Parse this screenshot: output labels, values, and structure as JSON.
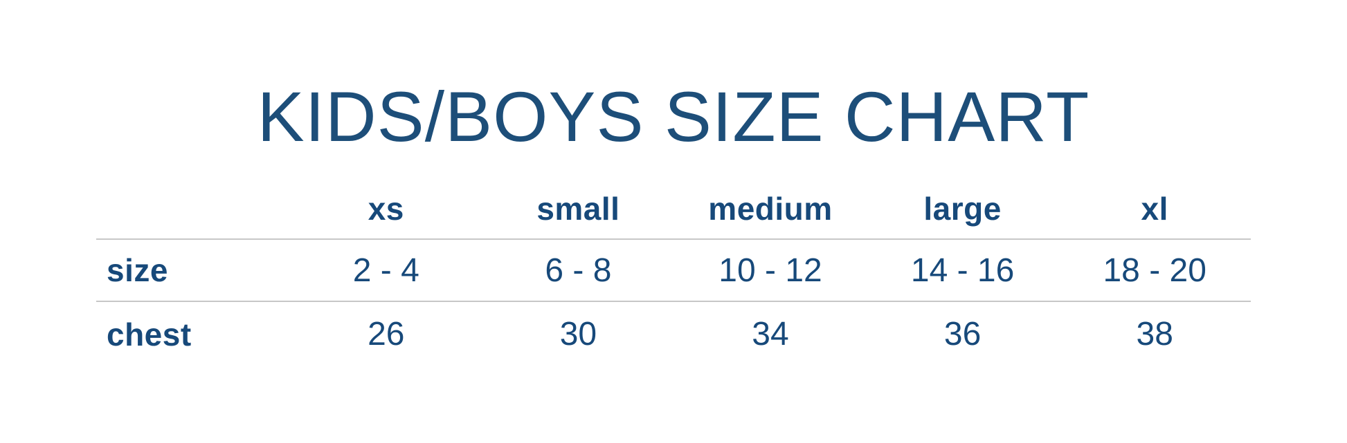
{
  "colors": {
    "background": "#ffffff",
    "title_text": "#1d4e79",
    "table_text": "#17497a",
    "rule_line": "#c7c7c7"
  },
  "chart_data": {
    "type": "table",
    "title": "KIDS/BOYS SIZE CHART",
    "column_headers": [
      "xs",
      "small",
      "medium",
      "large",
      "xl"
    ],
    "rows": [
      {
        "label": "size",
        "values": [
          "2 - 4",
          "6 - 8",
          "10 - 12",
          "14 - 16",
          "18 - 20"
        ]
      },
      {
        "label": "chest",
        "values": [
          "26",
          "30",
          "34",
          "36",
          "38"
        ]
      }
    ],
    "layout_hints": {
      "header_position": "top",
      "gridlines": "horizontal-only",
      "rule_count": 2,
      "label_column_align": "left",
      "value_align": "center"
    }
  }
}
